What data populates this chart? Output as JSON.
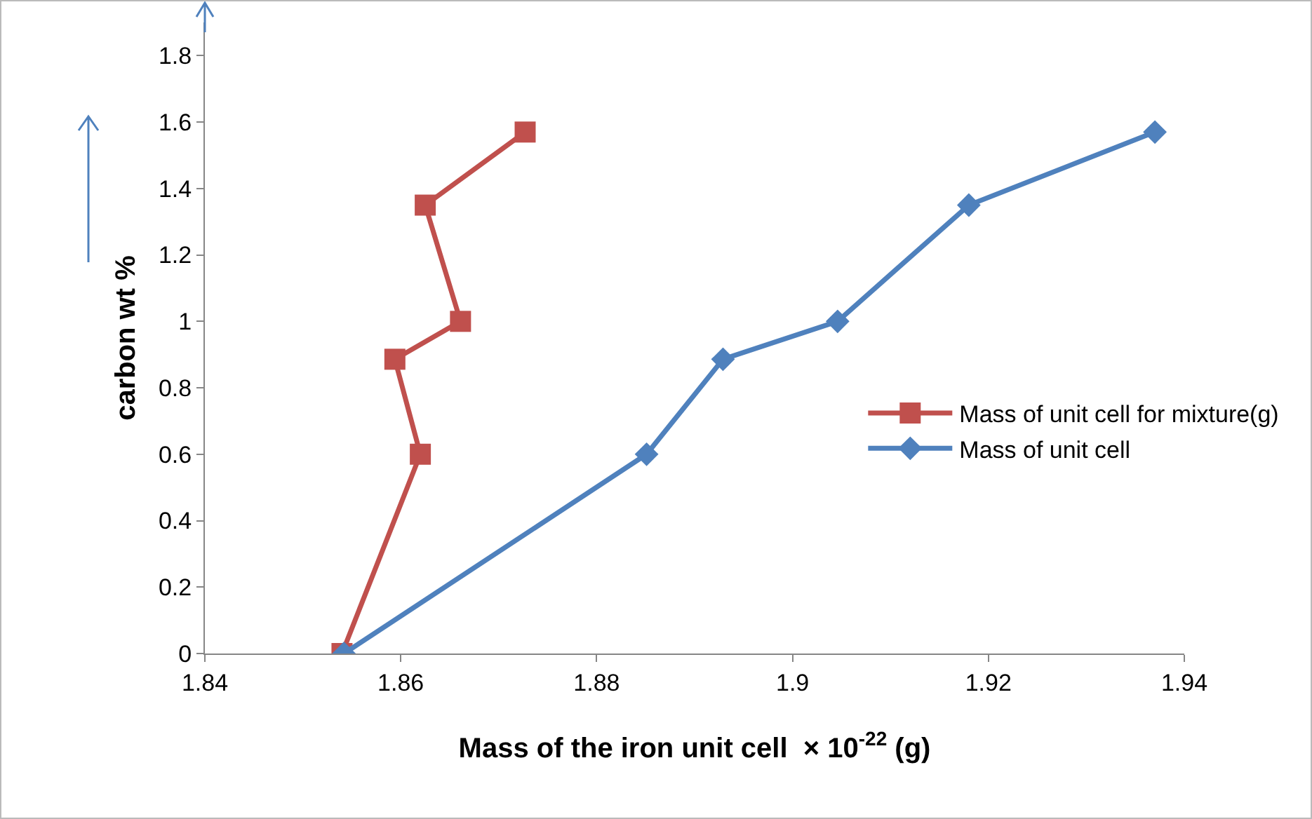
{
  "chart_data": {
    "type": "line",
    "xlabel": "Mass of the iron unit cell  × 10$^{-22}$ (g)",
    "ylabel": "carbon wt %",
    "xlim": [
      1.84,
      1.94
    ],
    "xticks": [
      1.84,
      1.86,
      1.88,
      1.9,
      1.92,
      1.94
    ],
    "ylim": [
      0,
      1.9
    ],
    "yticks": [
      0,
      0.2,
      0.4,
      0.6,
      0.8,
      1,
      1.2,
      1.4,
      1.6,
      1.8
    ],
    "grid": false,
    "legend": "right",
    "series": [
      {
        "name": "Mass of unit cell for mixture(g)",
        "color": "#c0504d",
        "marker": "square",
        "x": [
          1.854,
          1.862,
          1.8594,
          1.8661,
          1.8625,
          1.8727
        ],
        "values": [
          0,
          0.6,
          0.886,
          1.0,
          1.35,
          1.57
        ]
      },
      {
        "name": "Mass of unit cell",
        "color": "#4f81bd",
        "marker": "diamond",
        "x": [
          1.8542,
          1.8851,
          1.8929,
          1.9046,
          1.918,
          1.937
        ],
        "values": [
          0,
          0.6,
          0.886,
          1.0,
          1.35,
          1.57
        ]
      }
    ]
  }
}
